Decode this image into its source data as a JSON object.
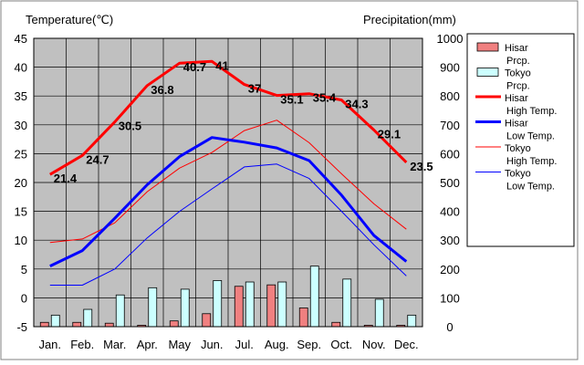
{
  "chart_data": {
    "type": "bar+line",
    "categories": [
      "Jan.",
      "Feb.",
      "Mar.",
      "Apr.",
      "May",
      "Jun.",
      "Jul.",
      "Aug.",
      "Sep.",
      "Oct.",
      "Nov.",
      "Dec."
    ],
    "left_axis": {
      "label": "Temperature(℃)",
      "min": -5,
      "max": 45,
      "step": 5
    },
    "right_axis": {
      "label": "Precipitation(mm)",
      "min": 0,
      "max": 1000,
      "step": 100
    },
    "grid": true,
    "legend_position": "right",
    "bar_series": [
      {
        "name": "Hisar Prcp.",
        "legend_lines": [
          "Hisar",
          "Prcp."
        ],
        "color": "#f08080",
        "values": [
          15,
          15,
          12,
          5,
          20,
          45,
          140,
          145,
          65,
          15,
          5,
          5
        ]
      },
      {
        "name": "Tokyo Prcp.",
        "legend_lines": [
          "Tokyo",
          "Prcp."
        ],
        "color": "#ccffff",
        "values": [
          40,
          60,
          110,
          135,
          130,
          160,
          155,
          155,
          210,
          165,
          95,
          40
        ]
      }
    ],
    "line_series": [
      {
        "name": "Hisar High Temp.",
        "legend_lines": [
          "Hisar",
          "High Temp."
        ],
        "color": "#ff0000",
        "width": 3,
        "values": [
          21.4,
          24.7,
          30.5,
          36.8,
          40.7,
          41,
          37,
          35.1,
          35.4,
          34.3,
          29.1,
          23.5
        ],
        "labels": [
          "21.4",
          "24.7",
          "30.5",
          "36.8",
          "40.7",
          "41",
          "37",
          "35.1",
          "35.4",
          "34.3",
          "29.1",
          "23.5"
        ]
      },
      {
        "name": "Hisar Low Temp.",
        "legend_lines": [
          "Hisar",
          "Low Temp."
        ],
        "color": "#0000ff",
        "width": 3,
        "values": [
          5.5,
          8.2,
          13.8,
          19.6,
          24.5,
          27.8,
          27.0,
          26.0,
          23.8,
          17.8,
          10.8,
          6.3
        ]
      },
      {
        "name": "Tokyo High Temp.",
        "legend_lines": [
          "Tokyo",
          "High Temp."
        ],
        "color": "#ff0000",
        "width": 1,
        "values": [
          9.6,
          10.2,
          13.0,
          18.4,
          22.5,
          25.2,
          29.0,
          30.8,
          26.9,
          21.5,
          16.3,
          11.9
        ]
      },
      {
        "name": "Tokyo Low Temp.",
        "legend_lines": [
          "Tokyo",
          "Low Temp."
        ],
        "color": "#0000ff",
        "width": 1,
        "values": [
          2.2,
          2.2,
          5.0,
          10.4,
          15.0,
          18.9,
          22.7,
          23.2,
          20.7,
          15.0,
          9.2,
          3.8
        ]
      }
    ]
  }
}
